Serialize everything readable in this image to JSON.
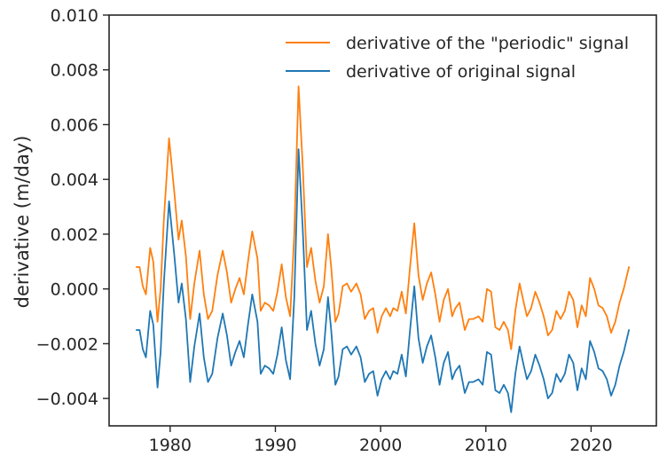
{
  "chart_data": {
    "type": "line",
    "title": "",
    "xlabel": "",
    "ylabel": "derivative (m/day)",
    "xlim": [
      1974.2,
      2026.2
    ],
    "ylim": [
      -0.005,
      0.01
    ],
    "xticks": [
      1980,
      1990,
      2000,
      2010,
      2020
    ],
    "xtick_labels": [
      "1980",
      "1990",
      "2000",
      "2010",
      "2020"
    ],
    "yticks": [
      -0.004,
      -0.002,
      0.0,
      0.002,
      0.004,
      0.006,
      0.008,
      0.01
    ],
    "ytick_labels": [
      "−0.004",
      "−0.002",
      "0.000",
      "0.002",
      "0.004",
      "0.006",
      "0.008",
      "0.010"
    ],
    "grid": false,
    "legend_position": "upper right",
    "series": [
      {
        "name": "derivative of the \"periodic\" signal",
        "color": "#ff7f0e",
        "points": [
          [
            1976.8,
            0.0008
          ],
          [
            1977.1,
            0.0008
          ],
          [
            1977.4,
            0.0001
          ],
          [
            1977.7,
            -0.0002
          ],
          [
            1978.1,
            0.0015
          ],
          [
            1978.4,
            0.001
          ],
          [
            1978.8,
            -0.0012
          ],
          [
            1979.1,
            0.0
          ],
          [
            1979.4,
            0.0025
          ],
          [
            1979.9,
            0.0055
          ],
          [
            1980.4,
            0.0035
          ],
          [
            1980.8,
            0.0018
          ],
          [
            1981.1,
            0.0025
          ],
          [
            1981.5,
            0.0012
          ],
          [
            1981.9,
            -0.0011
          ],
          [
            1982.3,
            0.0002
          ],
          [
            1982.8,
            0.0014
          ],
          [
            1983.2,
            -0.0002
          ],
          [
            1983.6,
            -0.0011
          ],
          [
            1984.0,
            -0.0008
          ],
          [
            1984.5,
            0.0005
          ],
          [
            1985.0,
            0.0014
          ],
          [
            1985.4,
            0.0006
          ],
          [
            1985.8,
            -0.0005
          ],
          [
            1986.2,
            0.0
          ],
          [
            1986.6,
            0.0004
          ],
          [
            1987.0,
            -0.0002
          ],
          [
            1987.4,
            0.001
          ],
          [
            1987.8,
            0.0021
          ],
          [
            1988.3,
            0.0011
          ],
          [
            1988.6,
            -0.0008
          ],
          [
            1989.0,
            -0.0005
          ],
          [
            1989.4,
            -0.0006
          ],
          [
            1989.8,
            -0.0008
          ],
          [
            1990.2,
            -0.0001
          ],
          [
            1990.6,
            0.0009
          ],
          [
            1991.0,
            -0.0003
          ],
          [
            1991.4,
            -0.001
          ],
          [
            1991.8,
            0.002
          ],
          [
            1992.2,
            0.0074
          ],
          [
            1992.6,
            0.0045
          ],
          [
            1993.0,
            0.0008
          ],
          [
            1993.4,
            0.0015
          ],
          [
            1993.8,
            0.0003
          ],
          [
            1994.2,
            -0.0005
          ],
          [
            1994.6,
            0.0001
          ],
          [
            1995.0,
            0.002
          ],
          [
            1995.3,
            0.0008
          ],
          [
            1995.7,
            -0.0012
          ],
          [
            1996.0,
            -0.0009
          ],
          [
            1996.4,
            0.0001
          ],
          [
            1996.8,
            0.0002
          ],
          [
            1997.2,
            -0.0001
          ],
          [
            1997.7,
            0.0002
          ],
          [
            1998.1,
            -0.0002
          ],
          [
            1998.5,
            -0.0011
          ],
          [
            1998.9,
            -0.0008
          ],
          [
            1999.3,
            -0.0007
          ],
          [
            1999.7,
            -0.0016
          ],
          [
            2000.1,
            -0.001
          ],
          [
            2000.5,
            -0.0007
          ],
          [
            2000.9,
            -0.001
          ],
          [
            2001.2,
            -0.0007
          ],
          [
            2001.6,
            -0.0008
          ],
          [
            2002.0,
            -0.0001
          ],
          [
            2002.4,
            -0.0009
          ],
          [
            2002.8,
            0.0008
          ],
          [
            2003.2,
            0.0024
          ],
          [
            2003.6,
            0.0005
          ],
          [
            2004.0,
            -0.0004
          ],
          [
            2004.4,
            0.0002
          ],
          [
            2004.8,
            0.0006
          ],
          [
            2005.2,
            -0.0002
          ],
          [
            2005.6,
            -0.0012
          ],
          [
            2006.0,
            -0.0004
          ],
          [
            2006.4,
            0.0
          ],
          [
            2006.8,
            -0.001
          ],
          [
            2007.1,
            -0.0007
          ],
          [
            2007.5,
            -0.0005
          ],
          [
            2008.0,
            -0.0015
          ],
          [
            2008.4,
            -0.0011
          ],
          [
            2008.8,
            -0.0011
          ],
          [
            2009.3,
            -0.001
          ],
          [
            2009.7,
            -0.0012
          ],
          [
            2010.1,
            0.0
          ],
          [
            2010.5,
            -0.0001
          ],
          [
            2010.9,
            -0.0014
          ],
          [
            2011.3,
            -0.0015
          ],
          [
            2011.7,
            -0.0012
          ],
          [
            2012.1,
            -0.0015
          ],
          [
            2012.4,
            -0.0022
          ],
          [
            2012.8,
            -0.0008
          ],
          [
            2013.2,
            0.0002
          ],
          [
            2013.6,
            -0.0005
          ],
          [
            2013.9,
            -0.001
          ],
          [
            2014.3,
            -0.0007
          ],
          [
            2014.7,
            -0.0001
          ],
          [
            2015.1,
            -0.0005
          ],
          [
            2015.5,
            -0.001
          ],
          [
            2015.9,
            -0.0017
          ],
          [
            2016.3,
            -0.0015
          ],
          [
            2016.7,
            -0.0008
          ],
          [
            2017.1,
            -0.0011
          ],
          [
            2017.5,
            -0.0008
          ],
          [
            2017.9,
            -0.0001
          ],
          [
            2018.3,
            -0.0004
          ],
          [
            2018.7,
            -0.0014
          ],
          [
            2019.1,
            -0.0006
          ],
          [
            2019.5,
            -0.001
          ],
          [
            2019.9,
            0.0004
          ],
          [
            2020.3,
            0.0
          ],
          [
            2020.7,
            -0.0006
          ],
          [
            2021.1,
            -0.0007
          ],
          [
            2021.5,
            -0.001
          ],
          [
            2021.9,
            -0.0016
          ],
          [
            2022.3,
            -0.0012
          ],
          [
            2022.7,
            -0.0005
          ],
          [
            2023.1,
            0.0
          ],
          [
            2023.6,
            0.0008
          ]
        ]
      },
      {
        "name": "derivative of original signal",
        "color": "#1f77b4",
        "points": [
          [
            1976.8,
            -0.0015
          ],
          [
            1977.1,
            -0.0015
          ],
          [
            1977.4,
            -0.0022
          ],
          [
            1977.7,
            -0.0025
          ],
          [
            1978.1,
            -0.0008
          ],
          [
            1978.4,
            -0.0013
          ],
          [
            1978.8,
            -0.0036
          ],
          [
            1979.1,
            -0.0023
          ],
          [
            1979.4,
            0.0002
          ],
          [
            1979.9,
            0.0032
          ],
          [
            1980.4,
            0.0012
          ],
          [
            1980.8,
            -0.0005
          ],
          [
            1981.1,
            0.0002
          ],
          [
            1981.5,
            -0.0011
          ],
          [
            1981.9,
            -0.0034
          ],
          [
            1982.3,
            -0.0021
          ],
          [
            1982.8,
            -0.0009
          ],
          [
            1983.2,
            -0.0025
          ],
          [
            1983.6,
            -0.0034
          ],
          [
            1984.0,
            -0.0031
          ],
          [
            1984.5,
            -0.0018
          ],
          [
            1985.0,
            -0.0009
          ],
          [
            1985.4,
            -0.0017
          ],
          [
            1985.8,
            -0.0028
          ],
          [
            1986.2,
            -0.0023
          ],
          [
            1986.6,
            -0.0019
          ],
          [
            1987.0,
            -0.0025
          ],
          [
            1987.4,
            -0.0013
          ],
          [
            1987.8,
            -0.0002
          ],
          [
            1988.3,
            -0.0012
          ],
          [
            1988.6,
            -0.0031
          ],
          [
            1989.0,
            -0.0028
          ],
          [
            1989.4,
            -0.0029
          ],
          [
            1989.8,
            -0.0031
          ],
          [
            1990.2,
            -0.0024
          ],
          [
            1990.6,
            -0.0014
          ],
          [
            1991.0,
            -0.0026
          ],
          [
            1991.4,
            -0.0033
          ],
          [
            1991.8,
            -0.0003
          ],
          [
            1992.2,
            0.0051
          ],
          [
            1992.6,
            0.0022
          ],
          [
            1993.0,
            -0.0015
          ],
          [
            1993.4,
            -0.0008
          ],
          [
            1993.8,
            -0.002
          ],
          [
            1994.2,
            -0.0028
          ],
          [
            1994.6,
            -0.0022
          ],
          [
            1995.0,
            -0.0003
          ],
          [
            1995.3,
            -0.0015
          ],
          [
            1995.7,
            -0.0035
          ],
          [
            1996.0,
            -0.0032
          ],
          [
            1996.4,
            -0.0022
          ],
          [
            1996.8,
            -0.0021
          ],
          [
            1997.2,
            -0.0024
          ],
          [
            1997.7,
            -0.0021
          ],
          [
            1998.1,
            -0.0025
          ],
          [
            1998.5,
            -0.0034
          ],
          [
            1998.9,
            -0.0031
          ],
          [
            1999.3,
            -0.003
          ],
          [
            1999.7,
            -0.0039
          ],
          [
            2000.1,
            -0.0033
          ],
          [
            2000.5,
            -0.003
          ],
          [
            2000.9,
            -0.0033
          ],
          [
            2001.2,
            -0.003
          ],
          [
            2001.6,
            -0.0031
          ],
          [
            2002.0,
            -0.0024
          ],
          [
            2002.4,
            -0.0032
          ],
          [
            2002.8,
            -0.0015
          ],
          [
            2003.2,
            0.0001
          ],
          [
            2003.6,
            -0.0018
          ],
          [
            2004.0,
            -0.0027
          ],
          [
            2004.4,
            -0.0021
          ],
          [
            2004.8,
            -0.0017
          ],
          [
            2005.2,
            -0.0025
          ],
          [
            2005.6,
            -0.0035
          ],
          [
            2006.0,
            -0.0027
          ],
          [
            2006.4,
            -0.0023
          ],
          [
            2006.8,
            -0.0033
          ],
          [
            2007.1,
            -0.003
          ],
          [
            2007.5,
            -0.0028
          ],
          [
            2008.0,
            -0.0038
          ],
          [
            2008.4,
            -0.0034
          ],
          [
            2008.8,
            -0.0034
          ],
          [
            2009.3,
            -0.0033
          ],
          [
            2009.7,
            -0.0035
          ],
          [
            2010.1,
            -0.0023
          ],
          [
            2010.5,
            -0.0024
          ],
          [
            2010.9,
            -0.0037
          ],
          [
            2011.3,
            -0.0038
          ],
          [
            2011.7,
            -0.0035
          ],
          [
            2012.1,
            -0.0038
          ],
          [
            2012.4,
            -0.0045
          ],
          [
            2012.8,
            -0.0031
          ],
          [
            2013.2,
            -0.0021
          ],
          [
            2013.6,
            -0.0028
          ],
          [
            2013.9,
            -0.0033
          ],
          [
            2014.3,
            -0.003
          ],
          [
            2014.7,
            -0.0024
          ],
          [
            2015.1,
            -0.0028
          ],
          [
            2015.5,
            -0.0033
          ],
          [
            2015.9,
            -0.004
          ],
          [
            2016.3,
            -0.0038
          ],
          [
            2016.7,
            -0.0031
          ],
          [
            2017.1,
            -0.0034
          ],
          [
            2017.5,
            -0.0031
          ],
          [
            2017.9,
            -0.0024
          ],
          [
            2018.3,
            -0.0027
          ],
          [
            2018.7,
            -0.0037
          ],
          [
            2019.1,
            -0.0029
          ],
          [
            2019.5,
            -0.0033
          ],
          [
            2019.9,
            -0.0019
          ],
          [
            2020.3,
            -0.0023
          ],
          [
            2020.7,
            -0.0029
          ],
          [
            2021.1,
            -0.003
          ],
          [
            2021.5,
            -0.0033
          ],
          [
            2021.9,
            -0.0039
          ],
          [
            2022.3,
            -0.0035
          ],
          [
            2022.7,
            -0.0028
          ],
          [
            2023.1,
            -0.0023
          ],
          [
            2023.6,
            -0.0015
          ]
        ]
      }
    ]
  }
}
